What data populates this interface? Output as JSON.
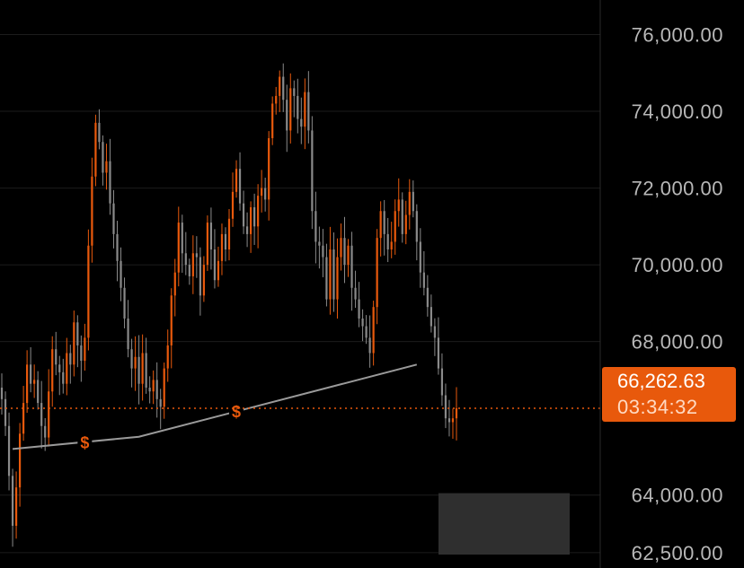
{
  "chart_data": {
    "type": "candlestick",
    "title": "",
    "xlabel": "",
    "ylabel": "",
    "y_ticks": [
      {
        "value": 76000,
        "label": "76,000.00"
      },
      {
        "value": 74000,
        "label": "74,000.00"
      },
      {
        "value": 72000,
        "label": "72,000.00"
      },
      {
        "value": 70000,
        "label": "70,000.00"
      },
      {
        "value": 68000,
        "label": "68,000.00"
      },
      {
        "value": 64000,
        "label": "64,000.00"
      },
      {
        "value": 62500,
        "label": "62,500.00"
      }
    ],
    "ylim": [
      62100,
      76900
    ],
    "grid": true,
    "current_price": {
      "value": 66262.63,
      "label": "66,262.63",
      "countdown": "03:34:32"
    },
    "colors": {
      "up": "#e8590c",
      "down": "#8a8a8a",
      "background": "#000000",
      "grid": "#1c1c1c",
      "trendline": "#9a9a9a"
    },
    "close_prices": [
      66500,
      65800,
      64500,
      63200,
      64200,
      65600,
      66400,
      67400,
      66900,
      67000,
      66400,
      65800,
      65500,
      66700,
      67800,
      67400,
      67200,
      66900,
      67700,
      67400,
      68500,
      67900,
      67500,
      68100,
      70500,
      72300,
      73700,
      73200,
      72400,
      72700,
      71600,
      70800,
      70100,
      69400,
      68600,
      67800,
      67300,
      67600,
      66900,
      67700,
      66800,
      66700,
      67000,
      66500,
      66300,
      67300,
      67900,
      69200,
      69800,
      71100,
      70300,
      70000,
      69700,
      70300,
      70200,
      69200,
      70000,
      71100,
      70400,
      69600,
      70100,
      70800,
      70400,
      71200,
      71900,
      72500,
      71600,
      71000,
      70800,
      71500,
      71000,
      71800,
      72000,
      71700,
      73300,
      74200,
      74400,
      74900,
      74300,
      73500,
      74600,
      74400,
      73800,
      73600,
      74500,
      73500,
      71400,
      70600,
      70500,
      70200,
      69100,
      70400,
      69100,
      70200,
      70700,
      70000,
      70500,
      69400,
      69100,
      68600,
      68400,
      68100,
      67700,
      68900,
      70700,
      71400,
      70800,
      70400,
      70600,
      71400,
      71700,
      70800,
      71300,
      71900,
      71400,
      70600,
      69800,
      69400,
      68900,
      68400,
      68100,
      67300,
      66600,
      66000,
      65900,
      66000,
      66263
    ],
    "trendline": [
      {
        "index": 3,
        "value": 65200
      },
      {
        "index": 38,
        "value": 65520
      },
      {
        "index": 115,
        "value": 67400
      }
    ],
    "trendline_markers": [
      {
        "label": "$",
        "index": 23,
        "value": 65360
      },
      {
        "label": "$",
        "index": 65,
        "value": 66170
      }
    ],
    "shaded_zone": {
      "y_high": 64050,
      "y_low": 62450
    }
  }
}
